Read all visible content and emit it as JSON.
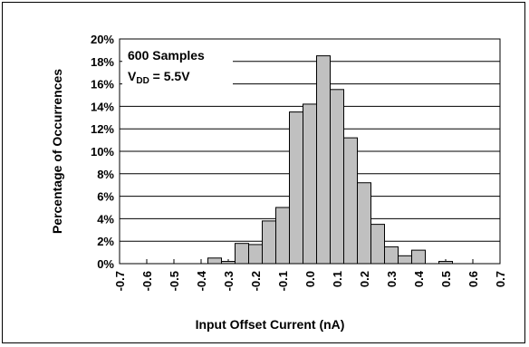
{
  "chart_data": {
    "type": "bar",
    "annotation": {
      "line1": "600 Samples",
      "line2_prefix": "V",
      "line2_sub": "DD",
      "line2_suffix": " = 5.5V"
    },
    "xlabel": "Input Offset Current (nA)",
    "ylabel": "Percentage of Occurrences",
    "x_ticks": [
      "-0.7",
      "-0.6",
      "-0.5",
      "-0.4",
      "-0.3",
      "-0.2",
      "-0.1",
      "0.0",
      "0.1",
      "0.2",
      "0.3",
      "0.4",
      "0.5",
      "0.6",
      "0.7"
    ],
    "y_ticks": [
      "0%",
      "2%",
      "4%",
      "6%",
      "8%",
      "10%",
      "12%",
      "14%",
      "16%",
      "18%",
      "20%"
    ],
    "ylim": [
      0,
      20
    ],
    "xlim": [
      -0.7,
      0.7
    ],
    "bin_width": 0.05,
    "bins": [
      {
        "x": -0.35,
        "value": 0.5
      },
      {
        "x": -0.3,
        "value": 0.2
      },
      {
        "x": -0.25,
        "value": 1.8
      },
      {
        "x": -0.2,
        "value": 1.7
      },
      {
        "x": -0.15,
        "value": 3.8
      },
      {
        "x": -0.1,
        "value": 5.0
      },
      {
        "x": -0.05,
        "value": 13.5
      },
      {
        "x": 0.0,
        "value": 14.2
      },
      {
        "x": 0.05,
        "value": 18.5
      },
      {
        "x": 0.1,
        "value": 15.5
      },
      {
        "x": 0.15,
        "value": 11.2
      },
      {
        "x": 0.2,
        "value": 7.2
      },
      {
        "x": 0.25,
        "value": 3.5
      },
      {
        "x": 0.3,
        "value": 1.5
      },
      {
        "x": 0.35,
        "value": 0.7
      },
      {
        "x": 0.4,
        "value": 1.2
      },
      {
        "x": 0.5,
        "value": 0.2
      }
    ],
    "colors": {
      "bar_fill": "#c0c0c0",
      "bar_stroke": "#000000",
      "grid": "#000000"
    },
    "grid": true
  }
}
